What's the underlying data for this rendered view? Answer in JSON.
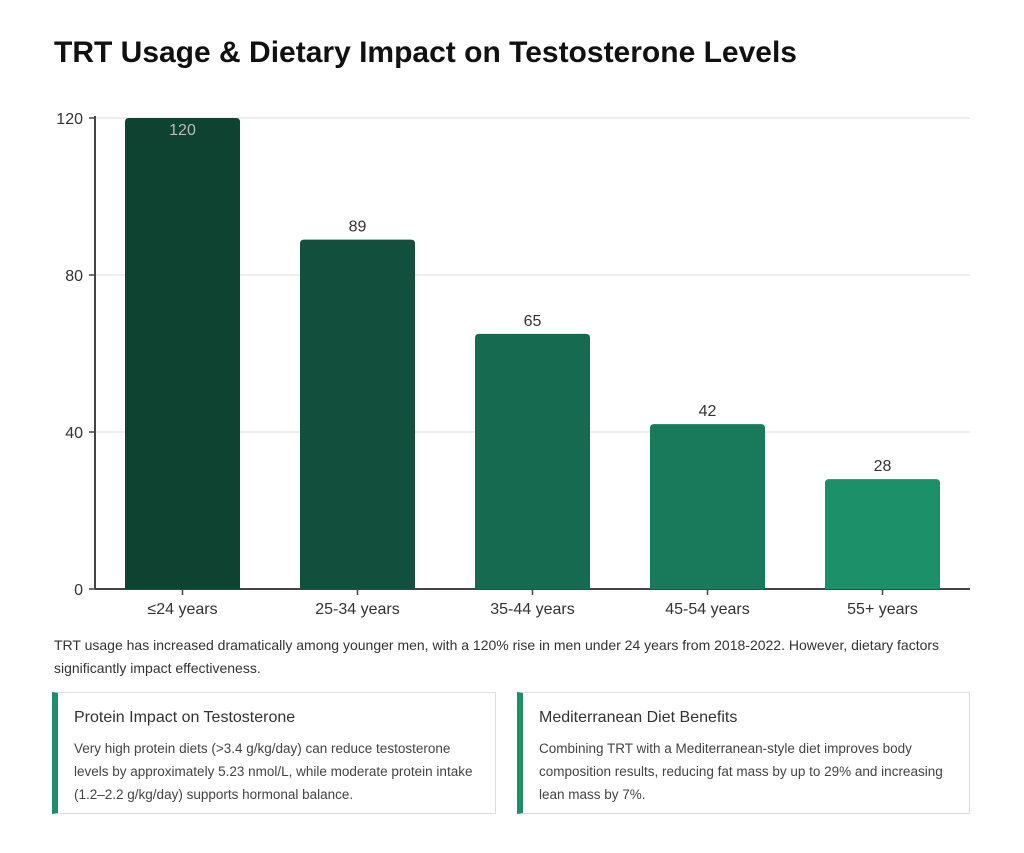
{
  "title": "TRT Usage & Dietary Impact on Testosterone Levels",
  "chart_data": {
    "type": "bar",
    "categories": [
      "≤24 years",
      "25-34 years",
      "35-44 years",
      "45-54 years",
      "55+ years"
    ],
    "values": [
      120,
      89,
      65,
      42,
      28
    ],
    "colors": [
      "#0d4330",
      "#124f3c",
      "#156a50",
      "#187a5b",
      "#1c9068"
    ],
    "ylim": [
      0,
      120
    ],
    "yticks": [
      0,
      40,
      80,
      120
    ],
    "grid": true,
    "xlabel": "",
    "ylabel": ""
  },
  "note": "TRT usage has increased dramatically among younger men, with a 120% rise in men under 24 years from 2018-2022. However, dietary factors significantly impact effectiveness.",
  "cards": [
    {
      "title": "Protein Impact on Testosterone",
      "body": "Very high protein diets (>3.4 g/kg/day) can reduce testosterone levels by approximately 5.23 nmol/L, while moderate protein intake (1.2–2.2 g/kg/day) supports hormonal balance."
    },
    {
      "title": "Mediterranean Diet Benefits",
      "body": "Combining TRT with a Mediterranean-style diet improves body composition results, reducing fat mass by up to 29% and increasing lean mass by 7%."
    }
  ],
  "accent": "#1e8f66"
}
